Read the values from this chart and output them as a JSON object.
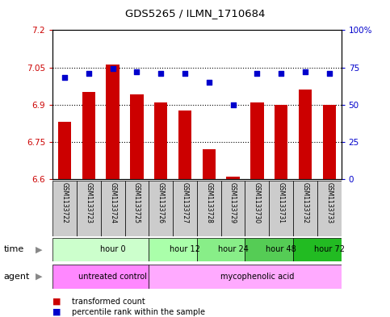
{
  "title": "GDS5265 / ILMN_1710684",
  "samples": [
    "GSM1133722",
    "GSM1133723",
    "GSM1133724",
    "GSM1133725",
    "GSM1133726",
    "GSM1133727",
    "GSM1133728",
    "GSM1133729",
    "GSM1133730",
    "GSM1133731",
    "GSM1133732",
    "GSM1133733"
  ],
  "bar_values": [
    6.83,
    6.95,
    7.06,
    6.94,
    6.91,
    6.875,
    6.72,
    6.61,
    6.91,
    6.9,
    6.96,
    6.9
  ],
  "dot_values": [
    68,
    71,
    74,
    72,
    71,
    71,
    65,
    50,
    71,
    71,
    72,
    71
  ],
  "ylim": [
    6.6,
    7.2
  ],
  "y2lim": [
    0,
    100
  ],
  "yticks": [
    6.6,
    6.75,
    6.9,
    7.05,
    7.2
  ],
  "y2ticks": [
    0,
    25,
    50,
    75,
    100
  ],
  "ytick_labels": [
    "6.6",
    "6.75",
    "6.9",
    "7.05",
    "7.2"
  ],
  "y2tick_labels": [
    "0",
    "25",
    "50",
    "75",
    "100%"
  ],
  "bar_color": "#cc0000",
  "dot_color": "#0000cc",
  "bar_baseline": 6.6,
  "time_groups": [
    {
      "label": "hour 0",
      "start": 0,
      "end": 4,
      "color": "#ccffcc"
    },
    {
      "label": "hour 12",
      "start": 4,
      "end": 6,
      "color": "#aaffaa"
    },
    {
      "label": "hour 24",
      "start": 6,
      "end": 8,
      "color": "#88ee88"
    },
    {
      "label": "hour 48",
      "start": 8,
      "end": 10,
      "color": "#55cc55"
    },
    {
      "label": "hour 72",
      "start": 10,
      "end": 12,
      "color": "#22bb22"
    }
  ],
  "agent_groups": [
    {
      "label": "untreated control",
      "start": 0,
      "end": 4,
      "color": "#ff88ff"
    },
    {
      "label": "mycophenolic acid",
      "start": 4,
      "end": 12,
      "color": "#ffaaff"
    }
  ],
  "sample_bg_color": "#cccccc",
  "legend_bar_label": "transformed count",
  "legend_dot_label": "percentile rank within the sample",
  "arrow_color": "#888888"
}
